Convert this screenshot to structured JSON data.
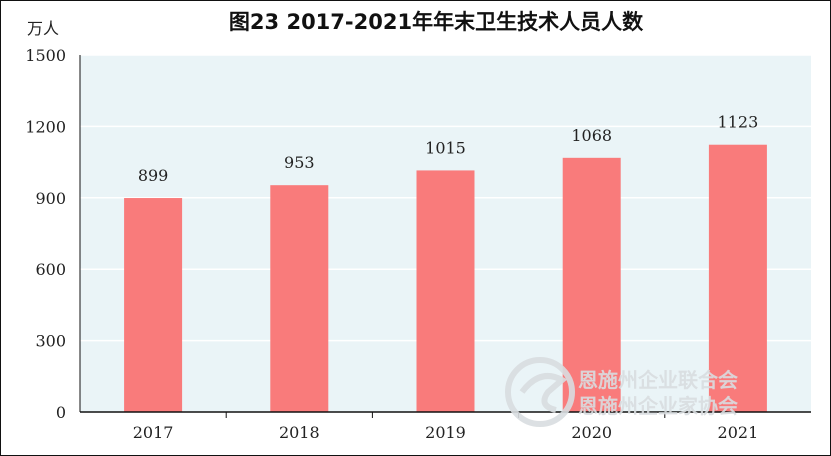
{
  "chart_data": {
    "type": "bar",
    "title": "图23 2017-2021年年末卫生技术人员人数",
    "ylabel": "万人",
    "xlabel": "",
    "categories": [
      "2017",
      "2018",
      "2019",
      "2020",
      "2021"
    ],
    "values": [
      899,
      953,
      1015,
      1068,
      1123
    ],
    "data_labels": [
      "899",
      "953",
      "1015",
      "1068",
      "1123"
    ],
    "ylim": [
      0,
      1500
    ],
    "yticks": [
      "0",
      "300",
      "600",
      "900",
      "1200",
      "1500"
    ],
    "grid": "horizontal",
    "bar_color": "#f97b7b",
    "plot_background": "#eaf4f7"
  },
  "watermark": {
    "line1": "恩施州企业联合会",
    "line2": "恩施州企业家协会"
  }
}
